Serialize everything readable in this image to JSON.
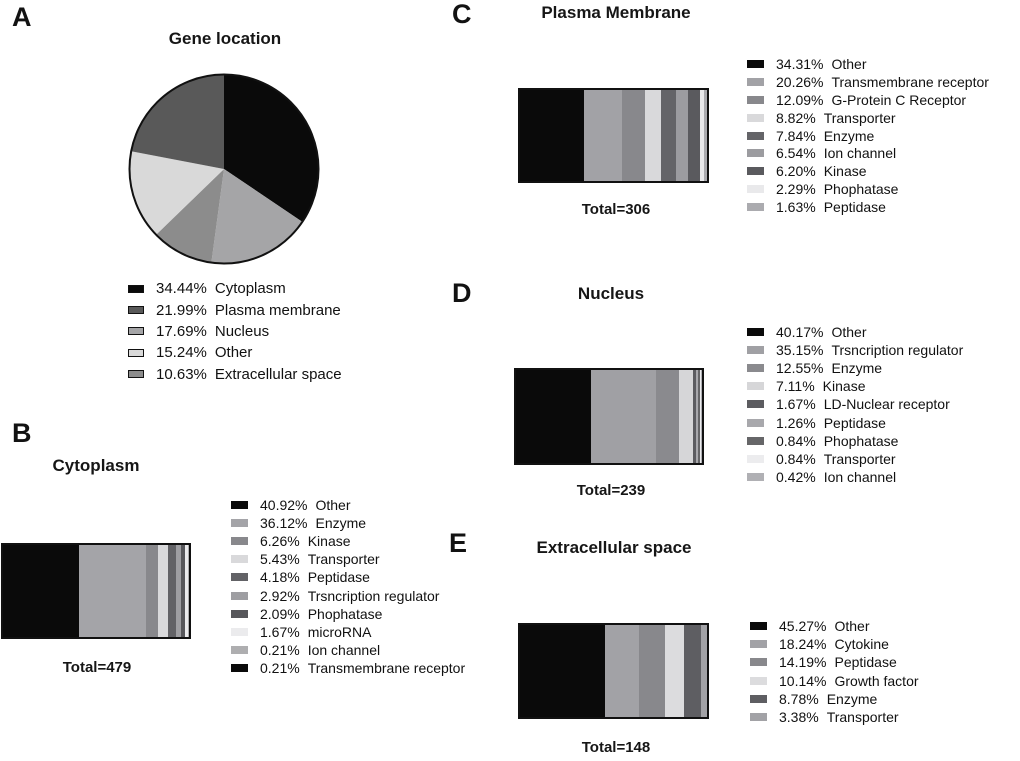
{
  "chart_data": [
    {
      "panel": "A",
      "type": "pie",
      "title": "Gene location",
      "unit": "%",
      "legend_position": "below",
      "legend_swatch_border": true,
      "outline_color": "#111111",
      "slices": [
        {
          "pct": "34.44%",
          "value": 34.44,
          "label": "Cytoplasm",
          "color": "#0a0a0a"
        },
        {
          "pct": "21.99%",
          "value": 21.99,
          "label": "Plasma membrane",
          "color": "#595959"
        },
        {
          "pct": "17.69%",
          "value": 17.69,
          "label": "Nucleus",
          "color": "#a5a5a7"
        },
        {
          "pct": "15.24%",
          "value": 15.24,
          "label": "Other",
          "color": "#d9d9d9"
        },
        {
          "pct": "10.63%",
          "value": 10.63,
          "label": "Extracellular space",
          "color": "#8c8c8c"
        }
      ],
      "slice_order_clockwise_from_top": [
        0,
        2,
        4,
        3,
        1
      ]
    },
    {
      "panel": "B",
      "type": "bar",
      "subtype": "horizontal-stacked",
      "title": "Cytoplasm",
      "total": 479,
      "total_label": "Total=479",
      "unit": "%",
      "legend_position": "right",
      "segments": [
        {
          "pct": "40.92%",
          "value": 40.92,
          "label": "Other",
          "color": "#0a0a0a"
        },
        {
          "pct": "36.12%",
          "value": 36.12,
          "label": "Enzyme",
          "color": "#a4a4a8"
        },
        {
          "pct": "6.26%",
          "value": 6.26,
          "label": "Kinase",
          "color": "#88888c"
        },
        {
          "pct": "5.43%",
          "value": 5.43,
          "label": "Transporter",
          "color": "#d9d9db"
        },
        {
          "pct": "4.18%",
          "value": 4.18,
          "label": "Peptidase",
          "color": "#626266"
        },
        {
          "pct": "2.92%",
          "value": 2.92,
          "label": "Trsncription regulator",
          "color": "#9e9ea2"
        },
        {
          "pct": "2.09%",
          "value": 2.09,
          "label": "Phophatase",
          "color": "#57575b"
        },
        {
          "pct": "1.67%",
          "value": 1.67,
          "label": "microRNA",
          "color": "#ebebed"
        },
        {
          "pct": "0.21%",
          "value": 0.21,
          "label": "Ion channel",
          "color": "#aeaeb0"
        },
        {
          "pct": "0.21%",
          "value": 0.21,
          "label": "Transmembrane receptor",
          "color": "#0a0a0a"
        }
      ]
    },
    {
      "panel": "C",
      "type": "bar",
      "subtype": "horizontal-stacked",
      "title": "Plasma Membrane",
      "total": 306,
      "total_label": "Total=306",
      "unit": "%",
      "legend_position": "right",
      "segments": [
        {
          "pct": "34.31%",
          "value": 34.31,
          "label": "Other",
          "color": "#0a0a0a"
        },
        {
          "pct": "20.26%",
          "value": 20.26,
          "label": "Transmembrane receptor",
          "color": "#a2a2a6"
        },
        {
          "pct": "12.09%",
          "value": 12.09,
          "label": "G-Protein C Receptor",
          "color": "#88888c"
        },
        {
          "pct": "8.82%",
          "value": 8.82,
          "label": "Transporter",
          "color": "#d9d9db"
        },
        {
          "pct": "7.84%",
          "value": 7.84,
          "label": "Enzyme",
          "color": "#646468"
        },
        {
          "pct": "6.54%",
          "value": 6.54,
          "label": "Ion channel",
          "color": "#9c9ca0"
        },
        {
          "pct": "6.20%",
          "value": 6.2,
          "label": "Kinase",
          "color": "#5a5a5e"
        },
        {
          "pct": "2.29%",
          "value": 2.29,
          "label": "Phophatase",
          "color": "#e9e9eb"
        },
        {
          "pct": "1.63%",
          "value": 1.63,
          "label": "Peptidase",
          "color": "#ababaf"
        }
      ]
    },
    {
      "panel": "D",
      "type": "bar",
      "subtype": "horizontal-stacked",
      "title": "Nucleus",
      "total": 239,
      "total_label": "Total=239",
      "unit": "%",
      "legend_position": "right",
      "segments": [
        {
          "pct": "40.17%",
          "value": 40.17,
          "label": "Other",
          "color": "#0a0a0a"
        },
        {
          "pct": "35.15%",
          "value": 35.15,
          "label": "Trsncription regulator",
          "color": "#a0a0a4"
        },
        {
          "pct": "12.55%",
          "value": 12.55,
          "label": "Enzyme",
          "color": "#8a8a8e"
        },
        {
          "pct": "7.11%",
          "value": 7.11,
          "label": "Kinase",
          "color": "#d6d6d8"
        },
        {
          "pct": "1.67%",
          "value": 1.67,
          "label": "LD-Nuclear receptor",
          "color": "#5c5c60"
        },
        {
          "pct": "1.26%",
          "value": 1.26,
          "label": "Peptidase",
          "color": "#a8a8ac"
        },
        {
          "pct": "0.84%",
          "value": 0.84,
          "label": "Phophatase",
          "color": "#666668"
        },
        {
          "pct": "0.84%",
          "value": 0.84,
          "label": "Transporter",
          "color": "#ececee"
        },
        {
          "pct": "0.42%",
          "value": 0.42,
          "label": "Ion channel",
          "color": "#b0b0b4"
        }
      ]
    },
    {
      "panel": "E",
      "type": "bar",
      "subtype": "horizontal-stacked",
      "title": "Extracellular space",
      "total": 148,
      "total_label": "Total=148",
      "unit": "%",
      "legend_position": "right",
      "segments": [
        {
          "pct": "45.27%",
          "value": 45.27,
          "label": "Other",
          "color": "#0a0a0a"
        },
        {
          "pct": "18.24%",
          "value": 18.24,
          "label": "Cytokine",
          "color": "#a2a2a6"
        },
        {
          "pct": "14.19%",
          "value": 14.19,
          "label": "Peptidase",
          "color": "#88888c"
        },
        {
          "pct": "10.14%",
          "value": 10.14,
          "label": "Growth factor",
          "color": "#dcdcde"
        },
        {
          "pct": "8.78%",
          "value": 8.78,
          "label": "Enzyme",
          "color": "#5e5e62"
        },
        {
          "pct": "3.38%",
          "value": 3.38,
          "label": "Transporter",
          "color": "#a2a2a6"
        }
      ]
    }
  ]
}
